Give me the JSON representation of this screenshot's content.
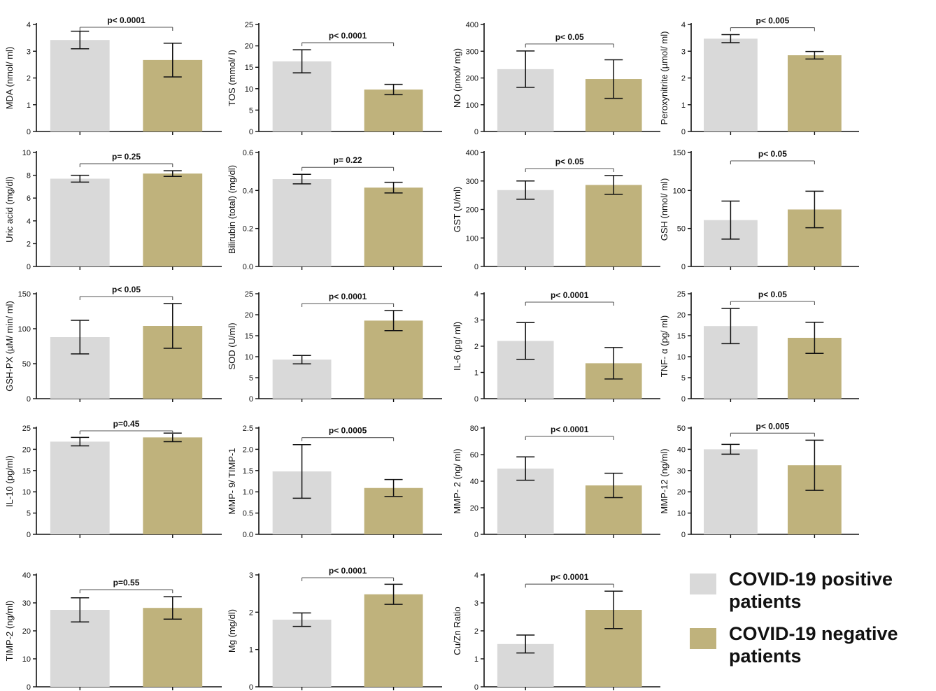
{
  "colors": {
    "positive": "#d9d9d9",
    "negative": "#bfb27c",
    "axis": "#111111",
    "text": "#111111"
  },
  "legend": {
    "placement": "bottom-right",
    "items": [
      {
        "label": "COVID-19 positive patients",
        "color": "#d9d9d9"
      },
      {
        "label": "COVID-19 negative patients",
        "color": "#bfb27c"
      }
    ]
  },
  "chart_data": [
    {
      "type": "bar",
      "ylabel": "MDA (nmol/ ml)",
      "ylim": [
        0,
        4
      ],
      "yticks": [
        0,
        1,
        2,
        3,
        4
      ],
      "ytick_labels": [
        "0",
        "1",
        "2",
        "3",
        "4"
      ],
      "annotation": "p< 0.0001",
      "series": [
        {
          "values": [
            3.42,
            2.67
          ],
          "errors": [
            0.33,
            0.63
          ]
        }
      ]
    },
    {
      "type": "bar",
      "ylabel": "TOS (mmol/ l)",
      "ylim": [
        0,
        25
      ],
      "yticks": [
        0,
        5,
        10,
        15,
        20,
        25
      ],
      "ytick_labels": [
        "0",
        "5",
        "10",
        "15",
        "20",
        "25"
      ],
      "annotation": "p< 0.0001",
      "series": [
        {
          "values": [
            16.4,
            9.8
          ],
          "errors": [
            2.7,
            1.2
          ]
        }
      ]
    },
    {
      "type": "bar",
      "ylabel": "NO (pmol/ mg)",
      "ylim": [
        0,
        400
      ],
      "yticks": [
        0,
        100,
        200,
        300,
        400
      ],
      "ytick_labels": [
        "0",
        "100",
        "200",
        "300",
        "400"
      ],
      "annotation": "p< 0.05",
      "series": [
        {
          "values": [
            233,
            196
          ],
          "errors": [
            68,
            72
          ]
        }
      ]
    },
    {
      "type": "bar",
      "ylabel": "Peroxynitrite (µmol/ ml)",
      "ylim": [
        0,
        4
      ],
      "yticks": [
        0,
        1,
        2,
        3,
        4
      ],
      "ytick_labels": [
        "0",
        "1",
        "2",
        "3",
        "4"
      ],
      "annotation": "p< 0.005",
      "series": [
        {
          "values": [
            3.47,
            2.85
          ],
          "errors": [
            0.15,
            0.14
          ]
        }
      ]
    },
    {
      "type": "bar",
      "ylabel": "Uric acid (mg/dl)",
      "ylim": [
        0,
        10
      ],
      "yticks": [
        0,
        2,
        4,
        6,
        8,
        10
      ],
      "ytick_labels": [
        "0",
        "2",
        "4",
        "6",
        "8",
        "10"
      ],
      "annotation": "p= 0.25",
      "series": [
        {
          "values": [
            7.7,
            8.15
          ],
          "errors": [
            0.3,
            0.25
          ]
        }
      ]
    },
    {
      "type": "bar",
      "ylabel": "Bilirubin (total) (mg/dl)",
      "ylim": [
        0,
        0.6
      ],
      "yticks": [
        0,
        0.2,
        0.4,
        0.6
      ],
      "ytick_labels": [
        "0.0",
        "0.2",
        "0.4",
        "0.6"
      ],
      "annotation": "p= 0.22",
      "series": [
        {
          "values": [
            0.46,
            0.415
          ],
          "errors": [
            0.025,
            0.028
          ]
        }
      ]
    },
    {
      "type": "bar",
      "ylabel": "GST (U/ml)",
      "ylim": [
        0,
        400
      ],
      "yticks": [
        0,
        100,
        200,
        300,
        400
      ],
      "ytick_labels": [
        "0",
        "100",
        "200",
        "300",
        "400"
      ],
      "annotation": "p< 0.05",
      "series": [
        {
          "values": [
            268,
            286
          ],
          "errors": [
            32,
            33
          ]
        }
      ]
    },
    {
      "type": "bar",
      "ylabel": "GSH (nmol/ ml)",
      "ylim": [
        0,
        150
      ],
      "yticks": [
        0,
        50,
        100,
        150
      ],
      "ytick_labels": [
        "0",
        "50",
        "100",
        "150"
      ],
      "annotation": "p< 0.05",
      "series": [
        {
          "values": [
            61,
            75
          ],
          "errors": [
            25,
            24
          ]
        }
      ]
    },
    {
      "type": "bar",
      "ylabel": "GSH-PX (µM/ min/ ml)",
      "ylim": [
        0,
        150
      ],
      "yticks": [
        0,
        50,
        100,
        150
      ],
      "ytick_labels": [
        "0",
        "50",
        "100",
        "150"
      ],
      "annotation": "p< 0.05",
      "series": [
        {
          "values": [
            88,
            104
          ],
          "errors": [
            24,
            32
          ]
        }
      ]
    },
    {
      "type": "bar",
      "ylabel": "SOD (U/ml)",
      "ylim": [
        0,
        25
      ],
      "yticks": [
        0,
        5,
        10,
        15,
        20,
        25
      ],
      "ytick_labels": [
        "0",
        "5",
        "10",
        "15",
        "20",
        "25"
      ],
      "annotation": "p< 0.0001",
      "series": [
        {
          "values": [
            9.3,
            18.6
          ],
          "errors": [
            1.0,
            2.4
          ]
        }
      ]
    },
    {
      "type": "bar",
      "ylabel": "IL-6 (pg/ ml)",
      "ylim": [
        0,
        4
      ],
      "yticks": [
        0,
        1,
        2,
        3,
        4
      ],
      "ytick_labels": [
        "0",
        "1",
        "2",
        "3",
        "4"
      ],
      "annotation": "p< 0.0001",
      "series": [
        {
          "values": [
            2.2,
            1.35
          ],
          "errors": [
            0.7,
            0.6
          ]
        }
      ]
    },
    {
      "type": "bar",
      "ylabel": "TNF- α (pg/ ml)",
      "ylim": [
        0,
        25
      ],
      "yticks": [
        0,
        5,
        10,
        15,
        20,
        25
      ],
      "ytick_labels": [
        "0",
        "5",
        "10",
        "15",
        "20",
        "25"
      ],
      "annotation": "p< 0.05",
      "series": [
        {
          "values": [
            17.3,
            14.5
          ],
          "errors": [
            4.2,
            3.7
          ]
        }
      ]
    },
    {
      "type": "bar",
      "ylabel": "IL-10 (pg/ml)",
      "ylim": [
        0,
        25
      ],
      "yticks": [
        0,
        5,
        10,
        15,
        20,
        25
      ],
      "ytick_labels": [
        "0",
        "5",
        "10",
        "15",
        "20",
        "25"
      ],
      "annotation": "p=0.45",
      "series": [
        {
          "values": [
            21.8,
            22.8
          ],
          "errors": [
            1.0,
            1.0
          ]
        }
      ]
    },
    {
      "type": "bar",
      "ylabel": "MMP- 9/ TIMP-1",
      "ylim": [
        0,
        2.5
      ],
      "yticks": [
        0,
        0.5,
        1,
        1.5,
        2,
        2.5
      ],
      "ytick_labels": [
        "0.0",
        "0.5",
        "1.0",
        "1.5",
        "2.0",
        "2.5"
      ],
      "annotation": "p< 0.0005",
      "series": [
        {
          "values": [
            1.48,
            1.09
          ],
          "errors": [
            0.63,
            0.2
          ]
        }
      ]
    },
    {
      "type": "bar",
      "ylabel": "MMP- 2 (ng/ ml)",
      "ylim": [
        0,
        80
      ],
      "yticks": [
        0,
        20,
        40,
        60,
        80
      ],
      "ytick_labels": [
        "0",
        "20",
        "40",
        "60",
        "80"
      ],
      "annotation": "p< 0.0001",
      "series": [
        {
          "values": [
            49.5,
            36.8
          ],
          "errors": [
            8.8,
            9.2
          ]
        }
      ]
    },
    {
      "type": "bar",
      "ylabel": "MMP-12 (ng/ml)",
      "ylim": [
        0,
        50
      ],
      "yticks": [
        0,
        10,
        20,
        30,
        40,
        50
      ],
      "ytick_labels": [
        "0",
        "10",
        "20",
        "30",
        "40",
        "50"
      ],
      "annotation": "p< 0.005",
      "series": [
        {
          "values": [
            40,
            32.5
          ],
          "errors": [
            2.3,
            11.8
          ]
        }
      ]
    },
    {
      "type": "bar",
      "ylabel": "TIMP-2 (ng/ml)",
      "ylim": [
        0,
        40
      ],
      "yticks": [
        0,
        10,
        20,
        30,
        40
      ],
      "ytick_labels": [
        "0",
        "10",
        "20",
        "30",
        "40"
      ],
      "annotation": "p=0.55",
      "series": [
        {
          "values": [
            27.5,
            28.2
          ],
          "errors": [
            4.3,
            4.0
          ]
        }
      ]
    },
    {
      "type": "bar",
      "ylabel": "Mg (mg/dl)",
      "ylim": [
        0,
        3
      ],
      "yticks": [
        0,
        1,
        2,
        3
      ],
      "ytick_labels": [
        "0",
        "1",
        "2",
        "3"
      ],
      "annotation": "p< 0.0001",
      "series": [
        {
          "values": [
            1.8,
            2.48
          ],
          "errors": [
            0.18,
            0.27
          ]
        }
      ]
    },
    {
      "type": "bar",
      "ylabel": "Cu/Zn Ratio",
      "ylim": [
        0,
        4
      ],
      "yticks": [
        0,
        1,
        2,
        3,
        4
      ],
      "ytick_labels": [
        "0",
        "1",
        "2",
        "3",
        "4"
      ],
      "annotation": "p< 0.0001",
      "series": [
        {
          "values": [
            1.53,
            2.75
          ],
          "errors": [
            0.32,
            0.67
          ]
        }
      ]
    }
  ]
}
